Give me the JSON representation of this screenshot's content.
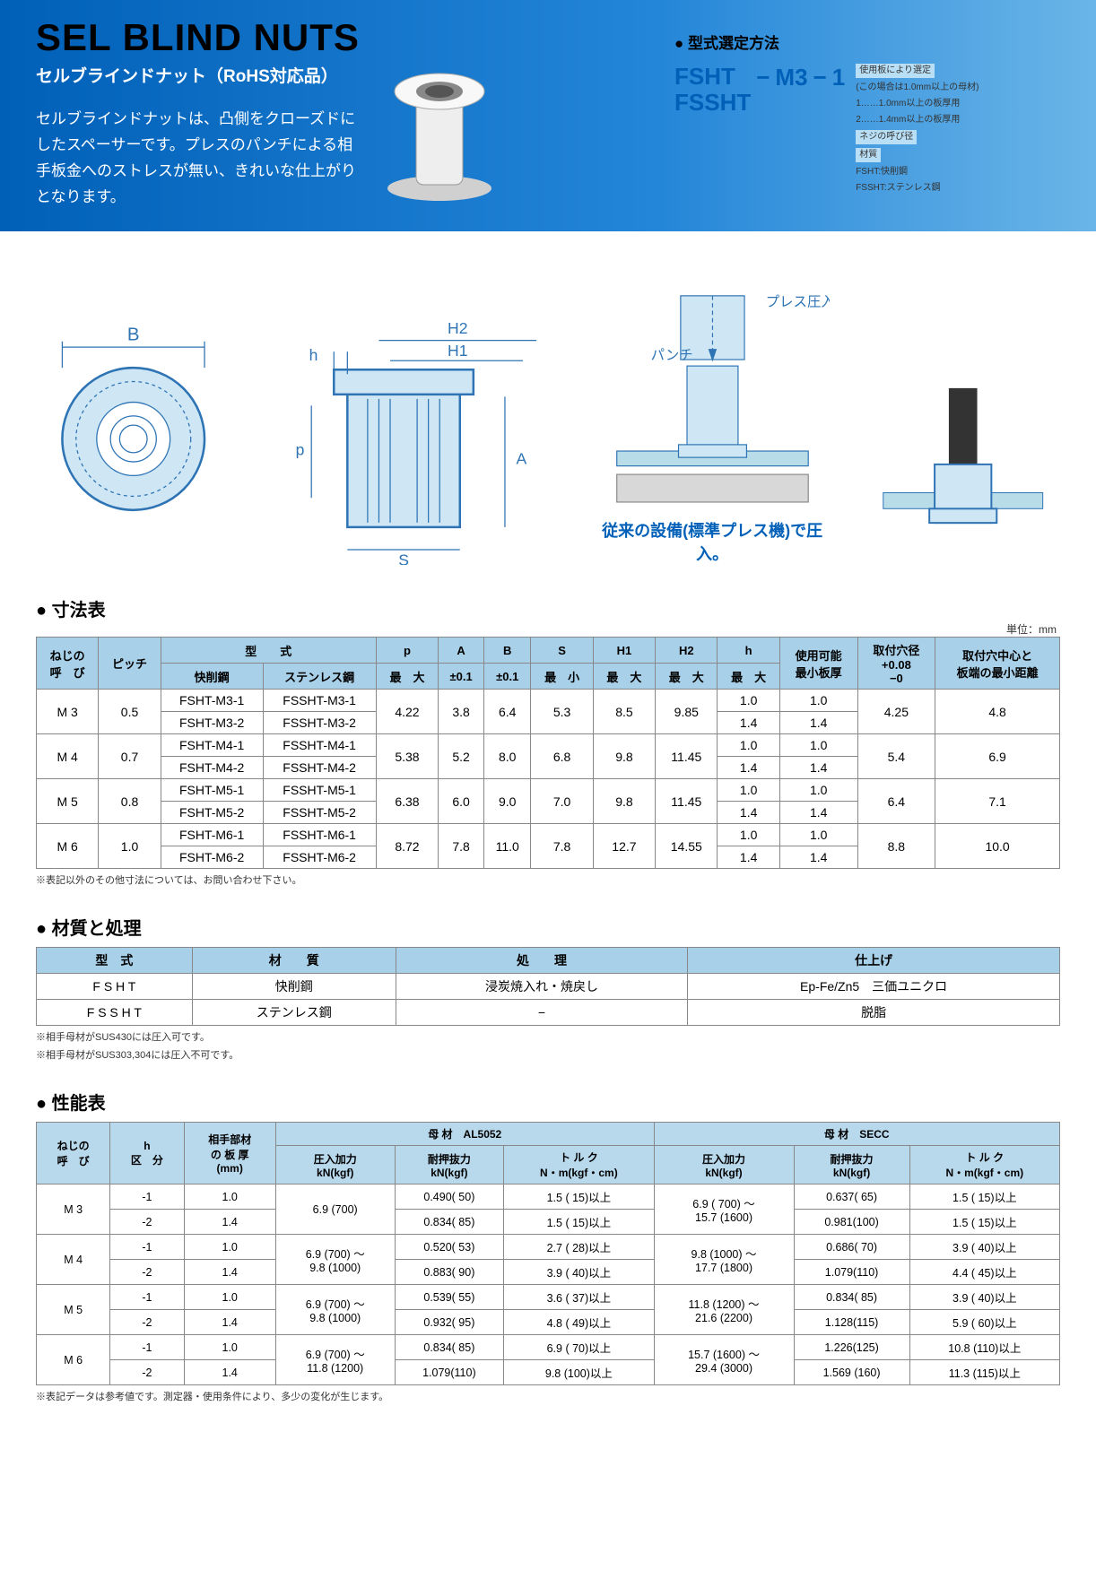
{
  "header": {
    "title_en": "SEL BLIND NUTS",
    "title_jp": "セルブラインドナット",
    "rohs": "（RoHS対応品）",
    "description": "セルブラインドナットは、凸側をクローズドにしたスペーサーです。プレスのパンチによる相手板金へのストレスが無い、きれいな仕上がりとなります。"
  },
  "model": {
    "title": "● 型式選定方法",
    "prefix1": "FSHT",
    "prefix2": "FSSHT",
    "mid": "M3",
    "tail": "1",
    "note_usage": "使用板により選定",
    "note_usage_sub": "(この場合は1.0mm以上の母材)",
    "note_usage_1": "1……1.0mm以上の板厚用",
    "note_usage_2": "2……1.4mm以上の板厚用",
    "note_thread": "ネジの呼び径",
    "note_material_title": "材質",
    "note_material_1": "FSHT:快削鋼",
    "note_material_2": "FSSHT:ステンレス鋼"
  },
  "diagram": {
    "labels": {
      "B": "B",
      "h": "h",
      "H2": "H2",
      "H1": "H1",
      "A": "A",
      "P": "p",
      "S": "S",
      "press": "プレス圧入",
      "punch": "パンチ"
    },
    "caption": "従来の設備(標準プレス機)で圧入。",
    "colors": {
      "stroke": "#2e74b5",
      "fill": "#cfe7f5",
      "bg": "#ffffff"
    }
  },
  "dimension_table": {
    "title": "● 寸法表",
    "unit": "単位：mm",
    "headers": {
      "thread": "ねじの\n呼　び",
      "pitch": "ピッチ",
      "type": "型　　式",
      "type_fcut": "快削鋼",
      "type_sus": "ステンレス鋼",
      "p": "p",
      "p_sub": "最　大",
      "A": "A",
      "A_sub": "±0.1",
      "B": "B",
      "B_sub": "±0.1",
      "S": "S",
      "S_sub": "最　小",
      "H1": "H1",
      "H1_sub": "最　大",
      "H2": "H2",
      "H2_sub": "最　大",
      "h": "h",
      "h_sub": "最　大",
      "min_plate": "使用可能\n最小板厚",
      "hole": "取付穴径\n+0.08\n−0",
      "center_dist": "取付穴中心と\n板端の最小距離"
    },
    "rows": [
      {
        "thread": "M 3",
        "pitch": "0.5",
        "models": [
          [
            "FSHT-M3-1",
            "FSSHT-M3-1"
          ],
          [
            "FSHT-M3-2",
            "FSSHT-M3-2"
          ]
        ],
        "p": "4.22",
        "A": "3.8",
        "B": "6.4",
        "S": "5.3",
        "H1": "8.5",
        "H2": "9.85",
        "h": [
          "1.0",
          "1.4"
        ],
        "min": [
          "1.0",
          "1.4"
        ],
        "hole": "4.25",
        "dist": "4.8"
      },
      {
        "thread": "M 4",
        "pitch": "0.7",
        "models": [
          [
            "FSHT-M4-1",
            "FSSHT-M4-1"
          ],
          [
            "FSHT-M4-2",
            "FSSHT-M4-2"
          ]
        ],
        "p": "5.38",
        "A": "5.2",
        "B": "8.0",
        "S": "6.8",
        "H1": "9.8",
        "H2": "11.45",
        "h": [
          "1.0",
          "1.4"
        ],
        "min": [
          "1.0",
          "1.4"
        ],
        "hole": "5.4",
        "dist": "6.9"
      },
      {
        "thread": "M 5",
        "pitch": "0.8",
        "models": [
          [
            "FSHT-M5-1",
            "FSSHT-M5-1"
          ],
          [
            "FSHT-M5-2",
            "FSSHT-M5-2"
          ]
        ],
        "p": "6.38",
        "A": "6.0",
        "B": "9.0",
        "S": "7.0",
        "H1": "9.8",
        "H2": "11.45",
        "h": [
          "1.0",
          "1.4"
        ],
        "min": [
          "1.0",
          "1.4"
        ],
        "hole": "6.4",
        "dist": "7.1"
      },
      {
        "thread": "M 6",
        "pitch": "1.0",
        "models": [
          [
            "FSHT-M6-1",
            "FSSHT-M6-1"
          ],
          [
            "FSHT-M6-2",
            "FSSHT-M6-2"
          ]
        ],
        "p": "8.72",
        "A": "7.8",
        "B": "11.0",
        "S": "7.8",
        "H1": "12.7",
        "H2": "14.55",
        "h": [
          "1.0",
          "1.4"
        ],
        "min": [
          "1.0",
          "1.4"
        ],
        "hole": "8.8",
        "dist": "10.0"
      }
    ],
    "footnote": "※表記以外のその他寸法については、お問い合わせ下さい。"
  },
  "material_table": {
    "title": "● 材質と処理",
    "headers": {
      "type": "型　式",
      "material": "材　　質",
      "treatment": "処　　理",
      "finish": "仕上げ"
    },
    "rows": [
      {
        "type": "F S H T",
        "material": "快削鋼",
        "treatment": "浸炭焼入れ・焼戻し",
        "finish": "Ep-Fe/Zn5　三価ユニクロ"
      },
      {
        "type": "F S S H T",
        "material": "ステンレス鋼",
        "treatment": "−",
        "finish": "脱脂"
      }
    ],
    "footnote1": "※相手母材がSUS430には圧入可です。",
    "footnote2": "※相手母材がSUS303,304には圧入不可です。"
  },
  "performance_table": {
    "title": "● 性能表",
    "headers": {
      "thread": "ねじの\n呼　び",
      "h": "h\n区　分",
      "plate": "相手部材\nの 板 厚\n(mm)",
      "mat1": "母 材　AL5052",
      "mat2": "母 材　SECC",
      "press": "圧入加力\nkN(kgf)",
      "pull": "耐押抜力\nkN(kgf)",
      "torque": "ト ル ク\nN・m(kgf・cm)"
    },
    "rows": [
      {
        "thread": "M 3",
        "sub": [
          {
            "h": "-1",
            "plate": "1.0",
            "al": {
              "press": "6.9 (700)",
              "pull": "0.490( 50)",
              "torque": "1.5 ( 15)以上"
            },
            "secc": {
              "press": "6.9 ( 700) ～\n15.7 (1600)",
              "pull": "0.637( 65)",
              "torque": "1.5 ( 15)以上"
            }
          },
          {
            "h": "-2",
            "plate": "1.4",
            "al": {
              "press": "",
              "pull": "0.834( 85)",
              "torque": "1.5 ( 15)以上"
            },
            "secc": {
              "press": "",
              "pull": "0.981(100)",
              "torque": "1.5 ( 15)以上"
            }
          }
        ]
      },
      {
        "thread": "M 4",
        "sub": [
          {
            "h": "-1",
            "plate": "1.0",
            "al": {
              "press": "6.9 (700) ～\n9.8 (1000)",
              "pull": "0.520( 53)",
              "torque": "2.7 ( 28)以上"
            },
            "secc": {
              "press": "9.8 (1000) ～\n17.7 (1800)",
              "pull": "0.686( 70)",
              "torque": "3.9 ( 40)以上"
            }
          },
          {
            "h": "-2",
            "plate": "1.4",
            "al": {
              "press": "",
              "pull": "0.883( 90)",
              "torque": "3.9 ( 40)以上"
            },
            "secc": {
              "press": "",
              "pull": "1.079(110)",
              "torque": "4.4 ( 45)以上"
            }
          }
        ]
      },
      {
        "thread": "M 5",
        "sub": [
          {
            "h": "-1",
            "plate": "1.0",
            "al": {
              "press": "6.9 (700) ～\n9.8 (1000)",
              "pull": "0.539( 55)",
              "torque": "3.6 ( 37)以上"
            },
            "secc": {
              "press": "11.8 (1200) ～\n21.6 (2200)",
              "pull": "0.834( 85)",
              "torque": "3.9 ( 40)以上"
            }
          },
          {
            "h": "-2",
            "plate": "1.4",
            "al": {
              "press": "",
              "pull": "0.932( 95)",
              "torque": "4.8 ( 49)以上"
            },
            "secc": {
              "press": "",
              "pull": "1.128(115)",
              "torque": "5.9 ( 60)以上"
            }
          }
        ]
      },
      {
        "thread": "M 6",
        "sub": [
          {
            "h": "-1",
            "plate": "1.0",
            "al": {
              "press": "6.9 (700) ～\n11.8 (1200)",
              "pull": "0.834( 85)",
              "torque": "6.9 ( 70)以上"
            },
            "secc": {
              "press": "15.7 (1600) ～\n29.4 (3000)",
              "pull": "1.226(125)",
              "torque": "10.8 (110)以上"
            }
          },
          {
            "h": "-2",
            "plate": "1.4",
            "al": {
              "press": "",
              "pull": "1.079(110)",
              "torque": "9.8 (100)以上"
            },
            "secc": {
              "press": "",
              "pull": "1.569 (160)",
              "torque": "11.3 (115)以上"
            }
          }
        ]
      }
    ],
    "footnote": "※表記データは参考値です。測定器・使用条件により、多少の変化が生じます。"
  }
}
